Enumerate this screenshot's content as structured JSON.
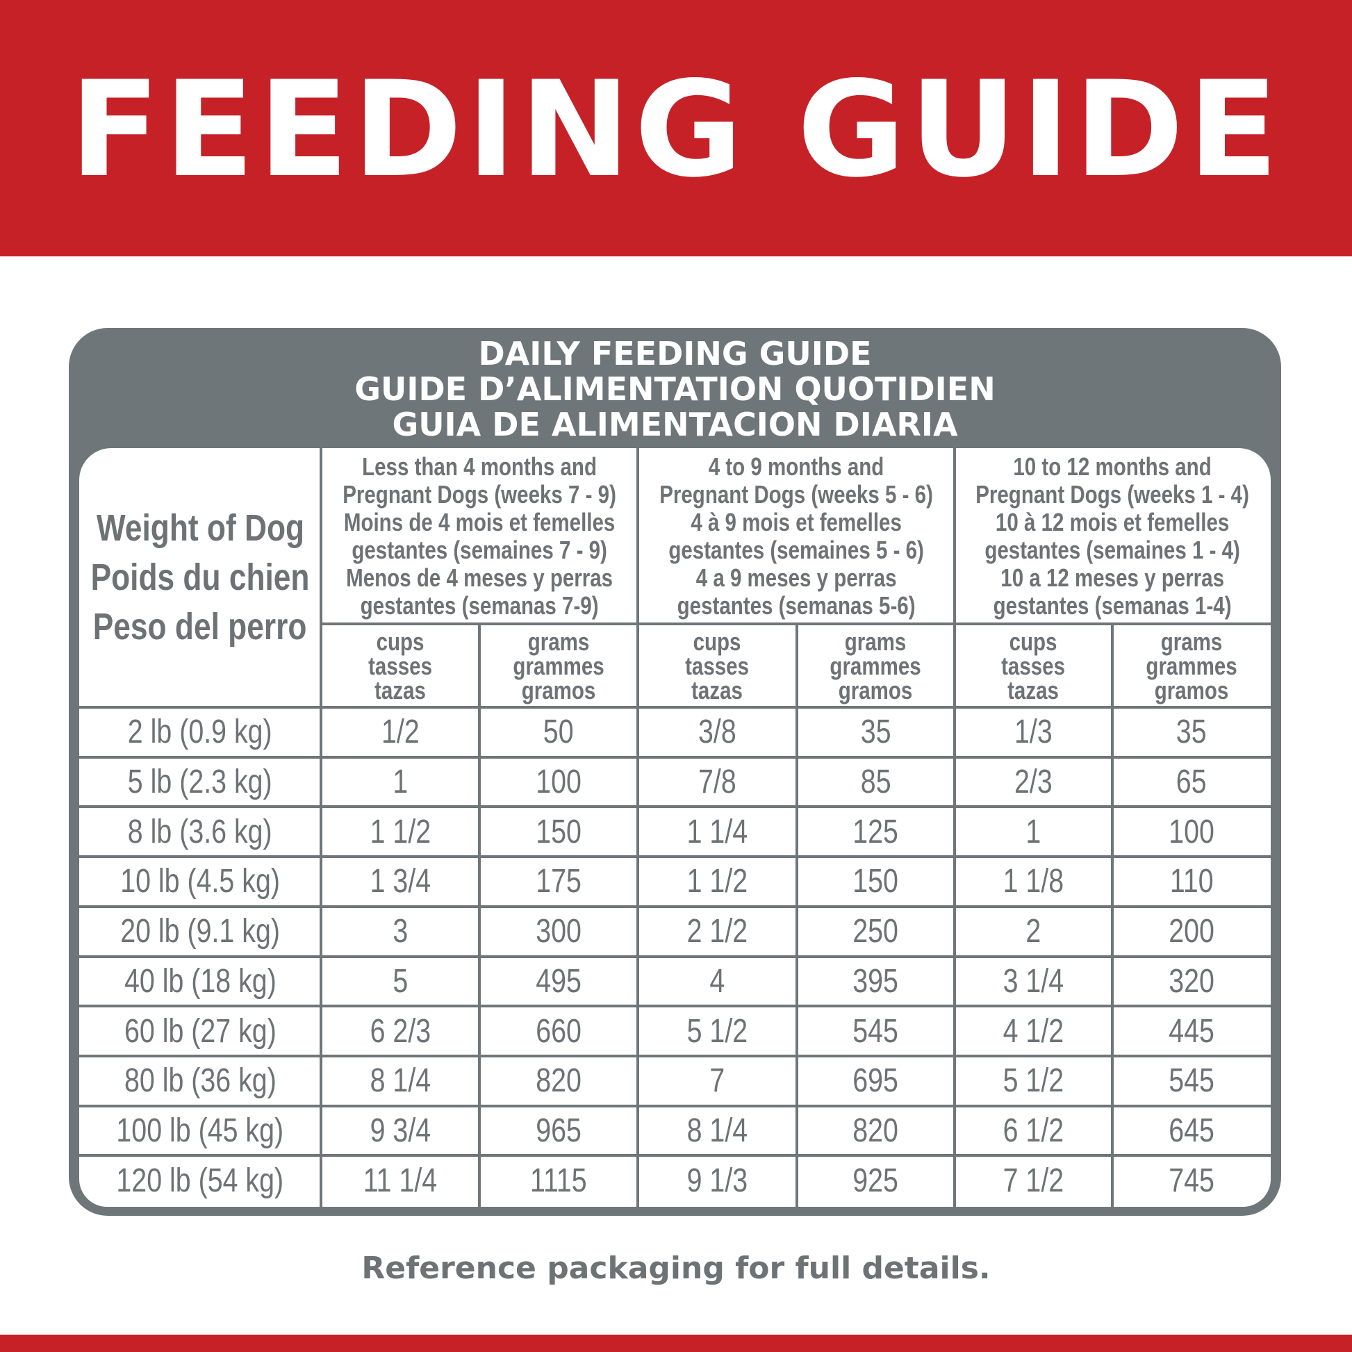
{
  "banner": {
    "title": "FEEDING GUIDE",
    "color": "#c62127"
  },
  "panel": {
    "titles": [
      "DAILY FEEDING GUIDE",
      "GUIDE D’ALIMENTATION QUOTIDIEN",
      "GUIA DE ALIMENTACION DIARIA"
    ],
    "color": "#6f7679"
  },
  "table": {
    "weight_header": [
      "Weight of Dog",
      "Poids du chien",
      "Peso del perro"
    ],
    "groups": [
      {
        "lines": [
          "Less than 4 months and",
          "Pregnant Dogs (weeks 7 - 9)",
          "Moins de 4 mois et femelles",
          "gestantes (semaines 7 - 9)",
          "Menos de 4 meses y perras",
          "gestantes (semanas 7-9)"
        ]
      },
      {
        "lines": [
          "4 to 9 months and",
          "Pregnant Dogs (weeks 5 - 6)",
          "4 à 9 mois et femelles",
          "gestantes (semaines 5 - 6)",
          "4 a 9 meses y perras",
          "gestantes (semanas 5-6)"
        ]
      },
      {
        "lines": [
          "10 to 12 months and",
          "Pregnant Dogs (weeks 1 - 4)",
          "10 à 12 mois et femelles",
          "gestantes (semaines 1 - 4)",
          "10 a 12 meses y perras",
          "gestantes (semanas 1-4)"
        ]
      }
    ],
    "units": {
      "cups": [
        "cups",
        "tasses",
        "tazas"
      ],
      "grams": [
        "grams",
        "grammes",
        "gramos"
      ]
    },
    "rows": [
      {
        "weight": "2 lb (0.9 kg)",
        "values": [
          "1/2",
          "50",
          "3/8",
          "35",
          "1/3",
          "35"
        ]
      },
      {
        "weight": "5 lb (2.3 kg)",
        "values": [
          "1",
          "100",
          "7/8",
          "85",
          "2/3",
          "65"
        ]
      },
      {
        "weight": "8 lb (3.6 kg)",
        "values": [
          "1 1/2",
          "150",
          "1 1/4",
          "125",
          "1",
          "100"
        ]
      },
      {
        "weight": "10 lb (4.5 kg)",
        "values": [
          "1 3/4",
          "175",
          "1 1/2",
          "150",
          "1 1/8",
          "110"
        ]
      },
      {
        "weight": "20 lb (9.1 kg)",
        "values": [
          "3",
          "300",
          "2 1/2",
          "250",
          "2",
          "200"
        ]
      },
      {
        "weight": "40 lb (18 kg)",
        "values": [
          "5",
          "495",
          "4",
          "395",
          "3 1/4",
          "320"
        ]
      },
      {
        "weight": "60 lb (27 kg)",
        "values": [
          "6 2/3",
          "660",
          "5 1/2",
          "545",
          "4 1/2",
          "445"
        ]
      },
      {
        "weight": "80 lb (36 kg)",
        "values": [
          "8 1/4",
          "820",
          "7",
          "695",
          "5 1/2",
          "545"
        ]
      },
      {
        "weight": "100 lb (45 kg)",
        "values": [
          "9 3/4",
          "965",
          "8 1/4",
          "820",
          "6 1/2",
          "645"
        ]
      },
      {
        "weight": "120 lb (54 kg)",
        "values": [
          "11 1/4",
          "1115",
          "9 1/3",
          "925",
          "7 1/2",
          "745"
        ]
      }
    ]
  },
  "footer": {
    "note": "Reference packaging for full details."
  }
}
